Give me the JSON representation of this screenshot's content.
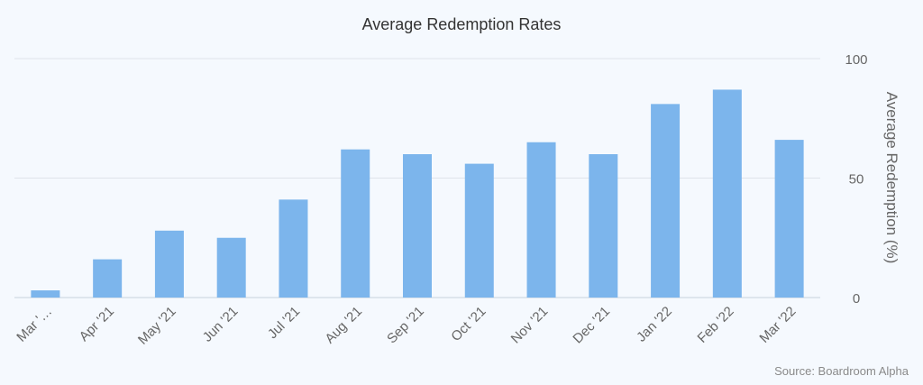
{
  "chart_data": {
    "type": "bar",
    "title": "Average Redemption Rates",
    "categories": [
      "Mar '…",
      "Apr '21",
      "May '21",
      "Jun '21",
      "Jul '21",
      "Aug '21",
      "Sep '21",
      "Oct '21",
      "Nov '21",
      "Dec '21",
      "Jan '22",
      "Feb '22",
      "Mar '22"
    ],
    "values": [
      3,
      16,
      28,
      25,
      41,
      62,
      60,
      56,
      65,
      60,
      81,
      87,
      66
    ],
    "xlabel": "",
    "ylabel": "Average Redemption (%)",
    "ylim": [
      0,
      100
    ],
    "yticks": [
      0,
      50,
      100
    ],
    "y_axis_side": "right",
    "bar_color": "#7cb5ec",
    "grid": true,
    "legend": "none",
    "source": "Source: Boardroom Alpha"
  }
}
